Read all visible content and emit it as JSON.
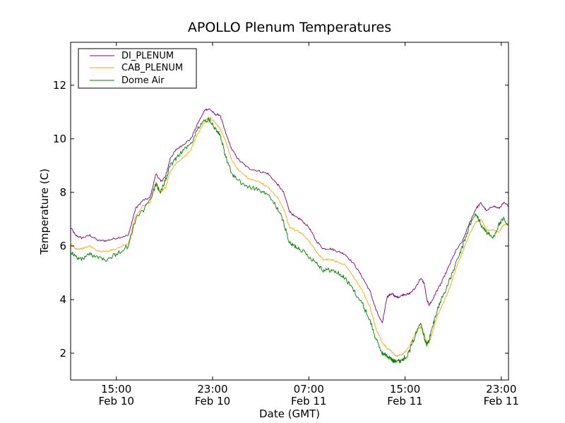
{
  "chart_data": {
    "type": "line",
    "title": "APOLLO Plenum Temperatures",
    "xlabel": "Date (GMT)",
    "ylabel": "Temperature (C)",
    "x_unit": "hours since Feb 10 00:00 GMT",
    "xlim": [
      11.2,
      47.6
    ],
    "ylim": [
      1.0,
      13.6
    ],
    "yticks": [
      2,
      4,
      6,
      8,
      10,
      12
    ],
    "xticks": [
      {
        "value": 15,
        "time": "15:00",
        "date": "Feb 10"
      },
      {
        "value": 23,
        "time": "23:00",
        "date": "Feb 10"
      },
      {
        "value": 31,
        "time": "07:00",
        "date": "Feb 11"
      },
      {
        "value": 39,
        "time": "15:00",
        "date": "Feb 11"
      },
      {
        "value": 47,
        "time": "23:00",
        "date": "Feb 11"
      }
    ],
    "legend_position": "top-left",
    "series": [
      {
        "name": "DI_PLENUM",
        "color": "#800080",
        "x": [
          11.2,
          11.6,
          12.1,
          12.8,
          13.5,
          14.2,
          15.0,
          16.0,
          16.6,
          17.2,
          17.8,
          18.3,
          18.7,
          19.1,
          19.5,
          20.0,
          20.6,
          21.2,
          21.8,
          22.4,
          22.8,
          23.2,
          23.6,
          24.1,
          24.6,
          25.2,
          26.0,
          26.8,
          27.6,
          28.4,
          28.9,
          29.4,
          29.8,
          30.3,
          31.0,
          31.6,
          32.2,
          32.8,
          33.4,
          34.0,
          34.8,
          35.5,
          36.1,
          36.6,
          37.1,
          37.5,
          37.8,
          38.0,
          38.2,
          38.5,
          38.9,
          39.3,
          39.8,
          40.3,
          40.6,
          40.8,
          41.0,
          41.3,
          41.6,
          42.0,
          42.6,
          43.2,
          43.8,
          44.4,
          44.9,
          45.3,
          45.8,
          46.3,
          46.8,
          47.2,
          47.6
        ],
        "y": [
          6.7,
          6.4,
          6.3,
          6.4,
          6.2,
          6.2,
          6.3,
          6.4,
          7.4,
          7.7,
          7.8,
          8.7,
          8.4,
          8.6,
          9.3,
          9.6,
          9.8,
          10.0,
          10.6,
          11.1,
          11.1,
          10.9,
          10.9,
          10.2,
          9.6,
          9.2,
          8.9,
          8.8,
          8.7,
          8.3,
          8.0,
          7.3,
          7.1,
          7.0,
          6.7,
          6.2,
          5.9,
          5.9,
          5.8,
          5.7,
          5.3,
          4.8,
          4.3,
          3.6,
          3.1,
          4.1,
          4.2,
          4.2,
          4.1,
          4.1,
          4.2,
          4.2,
          4.4,
          4.8,
          4.6,
          4.0,
          3.8,
          4.0,
          4.3,
          4.6,
          5.2,
          5.8,
          6.2,
          6.9,
          7.4,
          7.6,
          7.3,
          7.5,
          7.4,
          7.6,
          7.5
        ]
      },
      {
        "name": "CAB_PLENUM",
        "color": "#FFA500",
        "x": [
          11.2,
          11.6,
          12.1,
          12.8,
          13.5,
          14.2,
          15.0,
          16.0,
          16.6,
          17.2,
          17.8,
          18.3,
          18.7,
          19.1,
          19.5,
          20.0,
          20.6,
          21.2,
          21.8,
          22.4,
          22.8,
          23.2,
          23.6,
          24.1,
          24.6,
          25.2,
          26.0,
          26.8,
          27.6,
          28.4,
          28.9,
          29.4,
          29.8,
          30.3,
          31.0,
          31.6,
          32.2,
          32.8,
          33.4,
          34.0,
          34.8,
          35.5,
          36.1,
          36.6,
          37.1,
          37.5,
          37.8,
          38.0,
          38.2,
          38.5,
          38.9,
          39.3,
          39.8,
          40.3,
          40.6,
          40.8,
          41.0,
          41.3,
          41.6,
          42.0,
          42.6,
          43.2,
          43.8,
          44.4,
          44.9,
          45.3,
          45.8,
          46.3,
          46.8,
          47.2,
          47.6
        ],
        "y": [
          6.1,
          5.9,
          5.9,
          6.0,
          5.8,
          5.8,
          5.9,
          6.1,
          7.1,
          7.5,
          7.6,
          8.4,
          8.0,
          8.2,
          8.8,
          9.1,
          9.3,
          9.6,
          10.2,
          10.7,
          10.8,
          10.6,
          10.4,
          9.9,
          9.2,
          8.8,
          8.5,
          8.4,
          8.2,
          7.8,
          7.4,
          6.7,
          6.6,
          6.5,
          6.2,
          5.8,
          5.5,
          5.5,
          5.4,
          5.3,
          4.8,
          4.3,
          3.7,
          2.9,
          2.4,
          2.2,
          2.1,
          2.0,
          1.9,
          1.9,
          2.0,
          2.2,
          2.7,
          3.0,
          2.7,
          2.4,
          2.4,
          2.8,
          3.3,
          3.7,
          4.3,
          5.1,
          5.8,
          6.5,
          6.9,
          7.0,
          6.6,
          6.6,
          6.5,
          6.8,
          6.8
        ]
      },
      {
        "name": "Dome Air",
        "color": "#008000",
        "x": [
          11.2,
          11.6,
          12.1,
          12.8,
          13.5,
          14.2,
          15.0,
          16.0,
          16.6,
          17.2,
          17.8,
          18.3,
          18.7,
          19.1,
          19.5,
          20.0,
          20.6,
          21.2,
          21.8,
          22.4,
          22.8,
          23.2,
          23.6,
          24.1,
          24.6,
          25.2,
          26.0,
          26.8,
          27.6,
          28.4,
          28.9,
          29.4,
          29.8,
          30.3,
          31.0,
          31.6,
          32.2,
          32.8,
          33.4,
          34.0,
          34.8,
          35.5,
          36.1,
          36.6,
          37.1,
          37.5,
          37.8,
          38.0,
          38.2,
          38.5,
          38.9,
          39.3,
          39.8,
          40.3,
          40.6,
          40.8,
          41.0,
          41.3,
          41.6,
          42.0,
          42.6,
          43.2,
          43.8,
          44.4,
          44.9,
          45.3,
          45.8,
          46.3,
          46.8,
          47.2,
          47.6
        ],
        "y": [
          5.8,
          5.6,
          5.5,
          5.7,
          5.6,
          5.5,
          5.7,
          6.0,
          7.0,
          7.3,
          7.7,
          8.3,
          8.0,
          8.5,
          9.0,
          9.3,
          9.6,
          9.8,
          10.4,
          10.7,
          10.7,
          10.4,
          10.2,
          9.3,
          8.7,
          8.4,
          8.2,
          8.1,
          7.9,
          7.4,
          6.9,
          6.1,
          6.0,
          5.9,
          5.6,
          5.4,
          5.1,
          5.1,
          5.0,
          4.8,
          4.3,
          3.8,
          3.2,
          2.5,
          2.0,
          1.9,
          1.8,
          1.7,
          1.75,
          1.7,
          1.8,
          2.0,
          2.6,
          3.2,
          2.6,
          2.3,
          2.5,
          3.0,
          3.5,
          4.0,
          4.6,
          5.3,
          6.0,
          6.8,
          7.2,
          6.8,
          6.5,
          6.3,
          6.8,
          7.0,
          6.7
        ]
      }
    ]
  }
}
